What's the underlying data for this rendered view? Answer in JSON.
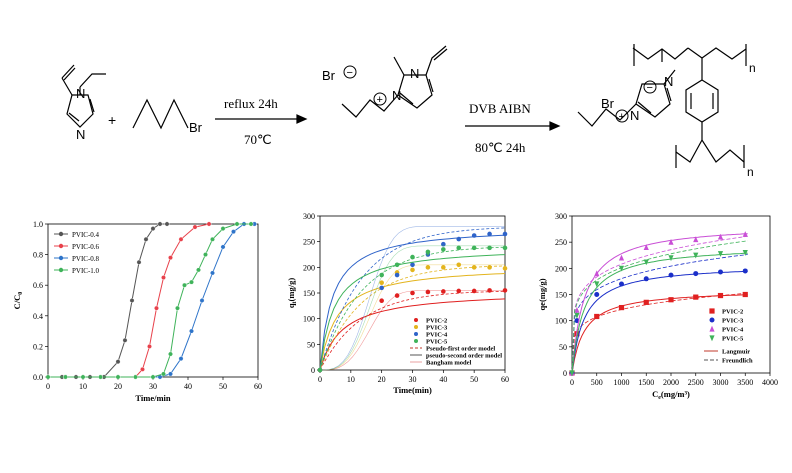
{
  "scheme": {
    "reagent_br": "Br",
    "step1_top": "reflux 24h",
    "step1_bottom": "70℃",
    "step2_top": "DVB  AIBN",
    "step2_bottom": "80℃ 24h",
    "plus": "+",
    "atoms": {
      "N": "N",
      "Br": "Br",
      "n": "n",
      "minus": "−",
      "plus_charge": "+"
    }
  },
  "chart_data": [
    {
      "type": "line",
      "xlabel": "Time/min",
      "ylabel": "C/C",
      "ylabel_sub": "0",
      "xlim": [
        0,
        60
      ],
      "ylim": [
        0,
        1.0
      ],
      "xticks": [
        "0",
        "10",
        "20",
        "30",
        "40",
        "50",
        "60"
      ],
      "yticks": [
        "0.0",
        "0.2",
        "0.4",
        "0.6",
        "0.8",
        "1.0"
      ],
      "legend": "top-left",
      "series": [
        {
          "name": "PVIC-0.4",
          "color": "#555555",
          "x": [
            0,
            4,
            8,
            12,
            16,
            20,
            22,
            24,
            26,
            28,
            30,
            32,
            34
          ],
          "y": [
            0,
            0,
            0,
            0,
            0,
            0.1,
            0.24,
            0.5,
            0.75,
            0.9,
            0.97,
            1.0,
            1.0
          ]
        },
        {
          "name": "PVIC-0.6",
          "color": "#e8414b",
          "x": [
            0,
            5,
            10,
            15,
            20,
            25,
            27,
            29,
            31,
            33,
            35,
            38,
            42,
            46
          ],
          "y": [
            0,
            0,
            0,
            0,
            0,
            0,
            0.05,
            0.2,
            0.45,
            0.65,
            0.78,
            0.9,
            0.98,
            1.0
          ]
        },
        {
          "name": "PVIC-0.8",
          "color": "#2e74c9",
          "x": [
            0,
            5,
            10,
            15,
            20,
            25,
            30,
            32,
            35,
            38,
            41,
            44,
            47,
            50,
            53,
            56,
            59
          ],
          "y": [
            0,
            0,
            0,
            0,
            0,
            0,
            0,
            0,
            0.02,
            0.12,
            0.3,
            0.5,
            0.68,
            0.85,
            0.95,
            1.0,
            1.0
          ]
        },
        {
          "name": "PVIC-1.0",
          "color": "#3fb35a",
          "x": [
            0,
            5,
            10,
            15,
            20,
            25,
            30,
            33,
            35,
            37,
            39,
            41,
            43,
            45,
            47,
            50,
            54,
            58
          ],
          "y": [
            0,
            0,
            0,
            0,
            0,
            0,
            0,
            0.02,
            0.15,
            0.45,
            0.6,
            0.62,
            0.7,
            0.8,
            0.9,
            0.97,
            1.0,
            1.0
          ]
        }
      ]
    },
    {
      "type": "scatter",
      "xlabel": "Time(min)",
      "ylabel": "q",
      "ylabel_sub": "t",
      "ylabel_rest": "(mg/g)",
      "xlim": [
        0,
        60
      ],
      "ylim": [
        0,
        300
      ],
      "xticks": [
        "0",
        "10",
        "20",
        "30",
        "40",
        "50",
        "60"
      ],
      "yticks": [
        "0",
        "50",
        "100",
        "150",
        "200",
        "250",
        "300"
      ],
      "legend": "bottom-right",
      "series": [
        {
          "name": "PVIC-2",
          "color": "#e02020",
          "x": [
            0,
            20,
            25,
            30,
            35,
            40,
            45,
            50,
            55,
            60
          ],
          "y": [
            0,
            135,
            145,
            150,
            152,
            153,
            154,
            154,
            155,
            155
          ]
        },
        {
          "name": "PVIC-3",
          "color": "#e3b41d",
          "x": [
            0,
            20,
            25,
            30,
            35,
            40,
            45,
            50,
            55,
            60
          ],
          "y": [
            0,
            170,
            190,
            195,
            200,
            200,
            205,
            200,
            200,
            198
          ]
        },
        {
          "name": "PVIC-4",
          "color": "#2e63c9",
          "x": [
            0,
            20,
            25,
            30,
            35,
            40,
            45,
            50,
            55,
            60
          ],
          "y": [
            0,
            160,
            185,
            205,
            225,
            245,
            255,
            262,
            265,
            265
          ]
        },
        {
          "name": "PVIC-5",
          "color": "#3fb35a",
          "x": [
            0,
            20,
            25,
            30,
            35,
            40,
            45,
            50,
            55,
            60
          ],
          "y": [
            0,
            185,
            205,
            220,
            230,
            235,
            238,
            238,
            238,
            238
          ]
        }
      ],
      "models": [
        "Pseudo-first order model",
        "pseudo-second order model",
        "Bangham model"
      ]
    },
    {
      "type": "scatter",
      "xlabel": "C",
      "xlabel_sub": "e",
      "xlabel_rest": "(mg/m³)",
      "ylabel": "qe(mg/g)",
      "xlim": [
        0,
        4000
      ],
      "ylim": [
        0,
        300
      ],
      "xticks": [
        "0",
        "500",
        "1000",
        "1500",
        "2000",
        "2500",
        "3000",
        "3500",
        "4000"
      ],
      "yticks": [
        "0",
        "50",
        "100",
        "150",
        "200",
        "250",
        "300"
      ],
      "legend": "bottom-right",
      "series": [
        {
          "name": "PVIC-2",
          "color": "#e02020",
          "marker": "square",
          "x": [
            0,
            100,
            500,
            1000,
            1500,
            2000,
            2500,
            3000,
            3500
          ],
          "y": [
            0,
            75,
            108,
            125,
            135,
            140,
            145,
            148,
            150
          ]
        },
        {
          "name": "PVIC-3",
          "color": "#1b2fc9",
          "marker": "circle",
          "x": [
            0,
            100,
            500,
            1000,
            1500,
            2000,
            2500,
            3000,
            3500
          ],
          "y": [
            0,
            100,
            150,
            170,
            180,
            187,
            190,
            193,
            195
          ]
        },
        {
          "name": "PVIC-4",
          "color": "#c94fd6",
          "marker": "triangle-up",
          "x": [
            0,
            100,
            500,
            1000,
            1500,
            2000,
            2500,
            3000,
            3500
          ],
          "y": [
            0,
            120,
            190,
            220,
            240,
            250,
            255,
            260,
            265
          ]
        },
        {
          "name": "PVIC-5",
          "color": "#3fb35a",
          "marker": "triangle-down",
          "x": [
            0,
            100,
            500,
            1000,
            1500,
            2000,
            2500,
            3000,
            3500
          ],
          "y": [
            0,
            110,
            170,
            200,
            212,
            220,
            225,
            228,
            230
          ]
        }
      ],
      "models": [
        "Langmuir",
        "Freundlich"
      ]
    }
  ]
}
